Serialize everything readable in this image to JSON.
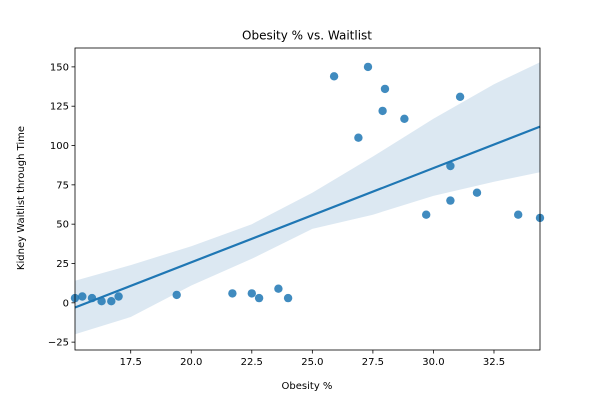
{
  "chart_data": {
    "type": "scatter",
    "title": "Obesity % vs. Waitlist",
    "xlabel": "Obesity %",
    "ylabel": "Kidney Waitlist through Time",
    "xlim": [
      15.2,
      34.4
    ],
    "ylim": [
      -30,
      162
    ],
    "xticks": [
      "17.5",
      "20.0",
      "22.5",
      "25.0",
      "27.5",
      "30.0",
      "32.5"
    ],
    "xtick_values": [
      17.5,
      20.0,
      22.5,
      25.0,
      27.5,
      30.0,
      32.5
    ],
    "yticks": [
      "−25",
      "0",
      "25",
      "50",
      "75",
      "100",
      "125",
      "150"
    ],
    "ytick_values": [
      -25,
      0,
      25,
      50,
      75,
      100,
      125,
      150
    ],
    "grid": false,
    "legend": "none",
    "points": [
      {
        "x": 15.2,
        "y": 3
      },
      {
        "x": 15.5,
        "y": 4
      },
      {
        "x": 15.9,
        "y": 3
      },
      {
        "x": 16.3,
        "y": 1
      },
      {
        "x": 16.7,
        "y": 1
      },
      {
        "x": 17.0,
        "y": 4
      },
      {
        "x": 19.4,
        "y": 5
      },
      {
        "x": 21.7,
        "y": 6
      },
      {
        "x": 22.5,
        "y": 6
      },
      {
        "x": 22.8,
        "y": 3
      },
      {
        "x": 23.6,
        "y": 9
      },
      {
        "x": 24.0,
        "y": 3
      },
      {
        "x": 25.9,
        "y": 144
      },
      {
        "x": 26.9,
        "y": 105
      },
      {
        "x": 27.3,
        "y": 150
      },
      {
        "x": 27.9,
        "y": 122
      },
      {
        "x": 28.0,
        "y": 136
      },
      {
        "x": 28.8,
        "y": 117
      },
      {
        "x": 29.7,
        "y": 56
      },
      {
        "x": 30.7,
        "y": 87
      },
      {
        "x": 30.7,
        "y": 65
      },
      {
        "x": 31.1,
        "y": 131
      },
      {
        "x": 31.8,
        "y": 70
      },
      {
        "x": 33.5,
        "y": 56
      },
      {
        "x": 34.4,
        "y": 54
      }
    ],
    "regression": {
      "x": [
        15.2,
        34.4
      ],
      "y": [
        -3,
        112
      ]
    },
    "confidence_band": {
      "x": [
        15.2,
        17.5,
        20.0,
        22.5,
        25.0,
        27.5,
        30.0,
        32.5,
        34.4
      ],
      "upper": [
        14,
        24,
        36,
        50,
        70,
        93,
        117,
        139,
        153
      ],
      "lower": [
        -20,
        -9,
        11,
        28,
        47,
        56,
        68,
        77,
        83
      ]
    },
    "colors": {
      "points": "#1f77b4",
      "line": "#1f77b4",
      "band": "#c5d8ea"
    }
  }
}
